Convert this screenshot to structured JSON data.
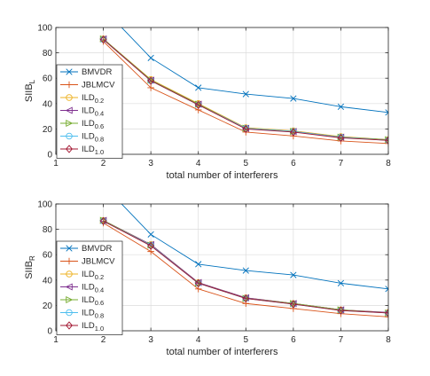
{
  "chart_data": [
    {
      "type": "line",
      "xlabel": "total number of interferers",
      "ylabel_main": "SIIB",
      "ylabel_sub": "L",
      "xlim": [
        1,
        8
      ],
      "ylim": [
        0,
        100
      ],
      "xticks": [
        1,
        2,
        3,
        4,
        5,
        6,
        7,
        8
      ],
      "yticks": [
        0,
        20,
        40,
        60,
        80,
        100
      ],
      "grid": true,
      "legend_position": "bottom-left",
      "x": [
        1,
        2,
        3,
        4,
        5,
        6,
        7,
        8
      ],
      "series": [
        {
          "name": "BMVDR",
          "label_main": "BMVDR",
          "label_sub": "",
          "color": "#0072bd",
          "marker": "x",
          "values": [
            null,
            115,
            76,
            52.5,
            47.5,
            44,
            37.5,
            33
          ]
        },
        {
          "name": "JBLMCV",
          "label_main": "JBLMCV",
          "label_sub": "",
          "color": "#d95319",
          "marker": "plus",
          "values": [
            null,
            89,
            52.5,
            35,
            17.5,
            14.5,
            10.5,
            8.5
          ]
        },
        {
          "name": "ILD0.2",
          "label_main": "ILD",
          "label_sub": "0.2",
          "color": "#edb120",
          "marker": "circle",
          "values": [
            null,
            91,
            59,
            40,
            21,
            18.5,
            14,
            11.5
          ]
        },
        {
          "name": "ILD0.4",
          "label_main": "ILD",
          "label_sub": "0.4",
          "color": "#7e2f8e",
          "marker": "triangle-left",
          "values": [
            null,
            91,
            58.5,
            39.5,
            20.5,
            18,
            13.5,
            11.5
          ]
        },
        {
          "name": "ILD0.6",
          "label_main": "ILD",
          "label_sub": "0.6",
          "color": "#77ac30",
          "marker": "triangle-right",
          "values": [
            null,
            91,
            58.5,
            39.5,
            20.5,
            18,
            13.5,
            11.5
          ]
        },
        {
          "name": "ILD0.8",
          "label_main": "ILD",
          "label_sub": "0.8",
          "color": "#4dbeee",
          "marker": "circle",
          "values": [
            null,
            90.5,
            58,
            39,
            20.5,
            18,
            13.5,
            11
          ]
        },
        {
          "name": "ILD1.0",
          "label_main": "ILD",
          "label_sub": "1.0",
          "color": "#a2142f",
          "marker": "diamond",
          "values": [
            null,
            90.5,
            58,
            39,
            20,
            17.5,
            13,
            11
          ]
        }
      ]
    },
    {
      "type": "line",
      "xlabel": "total number of interferers",
      "ylabel_main": "SIIB",
      "ylabel_sub": "R",
      "xlim": [
        1,
        8
      ],
      "ylim": [
        0,
        100
      ],
      "xticks": [
        1,
        2,
        3,
        4,
        5,
        6,
        7,
        8
      ],
      "yticks": [
        0,
        20,
        40,
        60,
        80,
        100
      ],
      "grid": true,
      "legend_position": "bottom-left",
      "x": [
        1,
        2,
        3,
        4,
        5,
        6,
        7,
        8
      ],
      "series": [
        {
          "name": "BMVDR",
          "label_main": "BMVDR",
          "label_sub": "",
          "color": "#0072bd",
          "marker": "x",
          "values": [
            null,
            115,
            76,
            52.5,
            47.5,
            44,
            37.5,
            33
          ]
        },
        {
          "name": "JBLMCV",
          "label_main": "JBLMCV",
          "label_sub": "",
          "color": "#d95319",
          "marker": "plus",
          "values": [
            null,
            85,
            62.5,
            33,
            21.5,
            17.5,
            13.5,
            11
          ]
        },
        {
          "name": "ILD0.2",
          "label_main": "ILD",
          "label_sub": "0.2",
          "color": "#edb120",
          "marker": "circle",
          "values": [
            null,
            87,
            68,
            38,
            26,
            21.5,
            16.5,
            14.5
          ]
        },
        {
          "name": "ILD0.4",
          "label_main": "ILD",
          "label_sub": "0.4",
          "color": "#7e2f8e",
          "marker": "triangle-left",
          "values": [
            null,
            87,
            68,
            38,
            26,
            21.5,
            16.5,
            14.5
          ]
        },
        {
          "name": "ILD0.6",
          "label_main": "ILD",
          "label_sub": "0.6",
          "color": "#77ac30",
          "marker": "triangle-right",
          "values": [
            null,
            87,
            67.5,
            37.5,
            25.5,
            21.5,
            16.5,
            14
          ]
        },
        {
          "name": "ILD0.8",
          "label_main": "ILD",
          "label_sub": "0.8",
          "color": "#4dbeee",
          "marker": "circle",
          "values": [
            null,
            86.5,
            67.5,
            37.5,
            25.5,
            21,
            16,
            14
          ]
        },
        {
          "name": "ILD1.0",
          "label_main": "ILD",
          "label_sub": "1.0",
          "color": "#a2142f",
          "marker": "diamond",
          "values": [
            null,
            86.5,
            67,
            37.5,
            25.5,
            21,
            16,
            14
          ]
        }
      ]
    }
  ]
}
